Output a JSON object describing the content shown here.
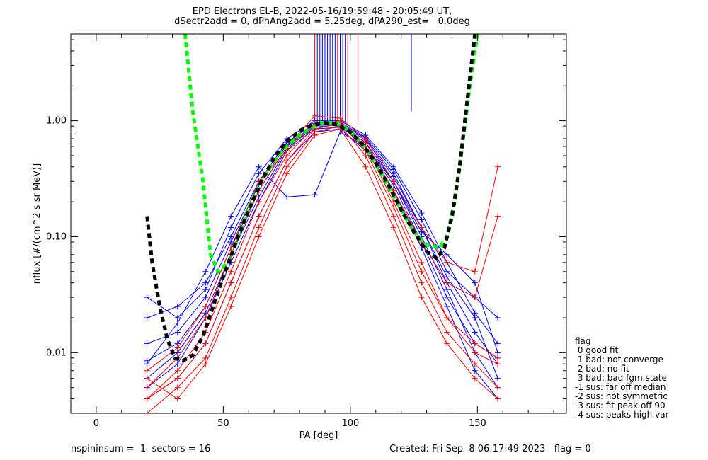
{
  "title_line1": "EPD Electrons EL-B, 2022-05-16/19:59:48 - 20:05:49 UT,",
  "title_line2": "dSectr2add = 0, dPhAng2add = 5.25deg, dPA290_est=   0.0deg",
  "footer_left": "nspininsum =  1  sectors = 16",
  "footer_right": "Created: Fri Sep  8 06:17:49 2023   flag = 0",
  "legend": {
    "title": "flag",
    "items": [
      " 0 good fit",
      " 1 bad: not converge",
      " 2 bad: no fit",
      " 3 bad: bad fgm state",
      "-1 sus: far off median",
      "-2 sus: not symmetric",
      "-3 sus: fit peak off 90",
      "-4 sus: peaks high var"
    ]
  },
  "colors": {
    "blue": "#0000ff",
    "red": "#ff0000",
    "green_fit": "#00ff00",
    "black_fit": "#000000"
  },
  "chart_data": {
    "type": "line",
    "title": "EPD Electrons EL-B, 2022-05-16/19:59:48 - 20:05:49 UT,",
    "subtitle": "dSectr2add = 0, dPhAng2add = 5.25deg, dPA290_est=   0.0deg",
    "xlabel": "PA [deg]",
    "ylabel": "nflux [#/(cm^2 s sr MeV)]",
    "xlim": [
      -10,
      185
    ],
    "ylim": [
      0.003,
      5.6
    ],
    "yscale": "log",
    "x_ticks": [
      "0",
      "50",
      "100",
      "150"
    ],
    "y_ticks": [
      "0.01",
      "0.10",
      "1.00"
    ],
    "grid": false,
    "series": [
      {
        "color": "blue",
        "x": [
          20,
          32,
          43,
          53,
          64,
          75,
          86,
          96,
          106,
          117,
          128,
          138,
          149,
          158
        ],
        "y": [
          0.0085,
          0.012,
          0.025,
          0.08,
          0.25,
          0.6,
          0.9,
          0.95,
          0.7,
          0.35,
          0.12,
          0.04,
          0.015,
          0.008
        ]
      },
      {
        "color": "blue",
        "x": [
          20,
          32,
          43,
          53,
          64,
          75,
          86,
          96,
          106,
          117,
          128,
          138,
          149,
          158
        ],
        "y": [
          0.02,
          0.025,
          0.04,
          0.1,
          0.3,
          0.65,
          0.95,
          0.9,
          0.6,
          0.28,
          0.09,
          0.03,
          0.012,
          0.009
        ]
      },
      {
        "color": "blue",
        "x": [
          20,
          32,
          43,
          53,
          64,
          75,
          86,
          96,
          106,
          117,
          128,
          138,
          149,
          158
        ],
        "y": [
          0.005,
          0.008,
          0.02,
          0.06,
          0.2,
          0.55,
          0.85,
          0.88,
          0.65,
          0.3,
          0.1,
          0.035,
          0.01,
          0.005
        ]
      },
      {
        "color": "blue",
        "x": [
          20,
          32,
          43,
          53,
          64,
          75,
          86,
          96,
          106,
          117,
          128,
          138,
          149,
          158
        ],
        "y": [
          0.03,
          0.02,
          0.035,
          0.12,
          0.35,
          0.7,
          1.0,
          1.0,
          0.75,
          0.4,
          0.16,
          0.06,
          0.022,
          0.012
        ]
      },
      {
        "color": "blue",
        "x": [
          20,
          32,
          43,
          53,
          64,
          75,
          86,
          96,
          106,
          117,
          128,
          138,
          149,
          158
        ],
        "y": [
          0.004,
          0.006,
          0.012,
          0.04,
          0.15,
          0.45,
          0.8,
          0.85,
          0.55,
          0.25,
          0.08,
          0.025,
          0.007,
          0.004
        ]
      },
      {
        "color": "blue",
        "x": [
          20,
          32,
          43,
          53,
          64,
          75,
          86,
          96,
          106,
          117,
          128,
          138,
          149,
          158
        ],
        "y": [
          0.012,
          0.015,
          0.03,
          0.09,
          0.28,
          0.62,
          0.92,
          0.97,
          0.72,
          0.38,
          0.14,
          0.05,
          0.03,
          0.02
        ]
      },
      {
        "color": "blue",
        "x": [
          20,
          32,
          43,
          53,
          64,
          75,
          86,
          96,
          106,
          117,
          128,
          138,
          149,
          158
        ],
        "y": [
          0.008,
          0.018,
          0.05,
          0.15,
          0.4,
          0.22,
          0.23,
          0.8,
          0.6,
          0.3,
          0.11,
          0.07,
          0.04,
          0.01
        ]
      },
      {
        "color": "blue",
        "x": [
          20,
          32,
          43,
          53,
          64,
          75,
          86,
          96,
          106,
          117,
          128,
          138,
          149,
          158
        ],
        "y": [
          0.006,
          0.01,
          0.022,
          0.07,
          0.22,
          0.58,
          0.88,
          0.93,
          0.68,
          0.33,
          0.12,
          0.045,
          0.02,
          0.006
        ]
      },
      {
        "color": "red",
        "x": [
          20,
          32,
          43,
          53,
          64,
          75,
          86,
          96,
          106,
          117,
          128,
          138,
          149,
          158
        ],
        "y": [
          0.003,
          0.005,
          0.009,
          0.03,
          0.12,
          0.4,
          0.8,
          0.9,
          0.5,
          0.15,
          0.04,
          0.015,
          0.008,
          0.005
        ]
      },
      {
        "color": "red",
        "x": [
          20,
          32,
          43,
          53,
          64,
          75,
          86,
          96,
          106,
          117,
          128,
          138,
          149,
          158
        ],
        "y": [
          0.004,
          0.007,
          0.015,
          0.05,
          0.2,
          0.5,
          0.9,
          1.0,
          0.6,
          0.2,
          0.06,
          0.02,
          0.01,
          0.008
        ]
      },
      {
        "color": "red",
        "x": [
          20,
          32,
          43,
          53,
          64,
          75,
          86,
          96,
          106,
          117,
          128,
          138,
          149,
          158
        ],
        "y": [
          0.006,
          0.004,
          0.008,
          0.025,
          0.1,
          0.35,
          0.75,
          0.85,
          0.4,
          0.12,
          0.03,
          0.012,
          0.006,
          0.004
        ]
      },
      {
        "color": "red",
        "x": [
          20,
          32,
          43,
          53,
          64,
          75,
          86,
          96,
          106,
          117,
          128,
          138,
          149,
          158
        ],
        "y": [
          0.005,
          0.009,
          0.02,
          0.07,
          0.25,
          0.6,
          1.1,
          1.05,
          0.7,
          0.3,
          0.12,
          0.06,
          0.05,
          0.4
        ]
      },
      {
        "color": "red",
        "x": [
          20,
          32,
          43,
          53,
          64,
          75,
          86,
          96,
          106,
          117,
          128,
          138,
          149,
          158
        ],
        "y": [
          0.004,
          0.006,
          0.012,
          0.04,
          0.15,
          0.45,
          0.85,
          0.95,
          0.55,
          0.18,
          0.05,
          0.02,
          0.012,
          0.009
        ]
      },
      {
        "color": "red",
        "x": [
          20,
          32,
          43,
          53,
          64,
          75,
          86,
          96,
          106,
          117,
          128,
          138,
          149,
          158
        ],
        "y": [
          0.007,
          0.011,
          0.025,
          0.08,
          0.3,
          0.55,
          0.95,
          0.9,
          0.65,
          0.25,
          0.09,
          0.04,
          0.03,
          0.15
        ]
      }
    ],
    "fit_curves": [
      {
        "color": "green_fit",
        "style": "dashed",
        "x": [
          35,
          38,
          42,
          45,
          48,
          52,
          56,
          60,
          65,
          70,
          75,
          80,
          85,
          90,
          95,
          100,
          105,
          110,
          115,
          120,
          125,
          130,
          135,
          138,
          141,
          144,
          147,
          150
        ],
        "y": [
          5.6,
          1.2,
          0.3,
          0.07,
          0.05,
          0.06,
          0.1,
          0.18,
          0.3,
          0.45,
          0.6,
          0.75,
          0.88,
          0.97,
          0.95,
          0.82,
          0.62,
          0.42,
          0.27,
          0.17,
          0.11,
          0.085,
          0.08,
          0.1,
          0.2,
          0.6,
          2.0,
          5.6
        ]
      },
      {
        "color": "black_fit",
        "style": "dashed",
        "x": [
          20,
          22,
          25,
          28,
          31,
          34,
          38,
          42,
          46,
          50,
          55,
          60,
          65,
          70,
          75,
          80,
          85,
          90,
          95,
          100,
          105,
          110,
          115,
          120,
          125,
          130,
          134,
          137,
          140,
          143,
          146,
          149
        ],
        "y": [
          0.15,
          0.06,
          0.025,
          0.013,
          0.009,
          0.0085,
          0.0095,
          0.014,
          0.025,
          0.045,
          0.09,
          0.17,
          0.3,
          0.48,
          0.66,
          0.82,
          0.92,
          0.96,
          0.92,
          0.8,
          0.62,
          0.43,
          0.28,
          0.17,
          0.11,
          0.075,
          0.065,
          0.08,
          0.15,
          0.4,
          1.5,
          5.6
        ]
      }
    ],
    "spikes": [
      {
        "color": "blue",
        "x": 87
      },
      {
        "color": "blue",
        "x": 88
      },
      {
        "color": "blue",
        "x": 89
      },
      {
        "color": "blue",
        "x": 90
      },
      {
        "color": "blue",
        "x": 91
      },
      {
        "color": "blue",
        "x": 92
      },
      {
        "color": "blue",
        "x": 93
      },
      {
        "color": "blue",
        "x": 94
      },
      {
        "color": "blue",
        "x": 95
      },
      {
        "color": "blue",
        "x": 96
      },
      {
        "color": "blue",
        "x": 97
      },
      {
        "color": "blue",
        "x": 98
      },
      {
        "color": "red",
        "x": 86
      },
      {
        "color": "red",
        "x": 95
      },
      {
        "color": "red",
        "x": 99
      },
      {
        "color": "red",
        "x": 103
      },
      {
        "color": "blue",
        "x": 124
      }
    ]
  }
}
